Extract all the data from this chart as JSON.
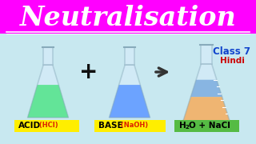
{
  "bg_color": "#c8e8f0",
  "title_bg": "#ff00ff",
  "title_text": "Neutralisation",
  "title_color": "#ffffff",
  "flask1_liquid_color": "#00dd44",
  "flask2_liquid_color": "#1166ff",
  "flask3_liquid_bottom": "#ff8800",
  "flask3_liquid_top": "#4488cc",
  "label1_bg": "#ffee00",
  "label1_main": "ACID",
  "label1_sub": " (HCl)",
  "label2_bg": "#ffee00",
  "label2_main": "BASE",
  "label2_sub": " (NaOH)",
  "label3_bg": "#55bb44",
  "label3_main": "H",
  "label3_sub": "2",
  "label3_rest": "O + NaCl",
  "plus_color": "#111111",
  "arrow_color": "#333333",
  "class7_color": "#1144cc",
  "hindi_color": "#cc0000",
  "title_fontsize": 24,
  "flask_glass_color": "#ddeeff",
  "flask_glass_edge": "#88aabb",
  "flask_glass_alpha": 0.45
}
